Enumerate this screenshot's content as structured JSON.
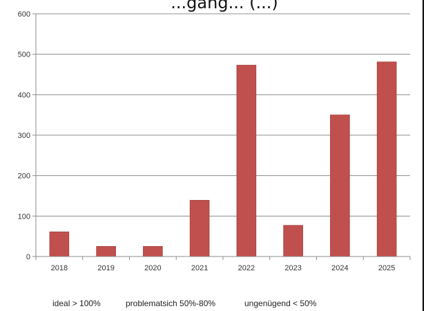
{
  "chart_data": {
    "type": "bar",
    "title": "...gang... (...)",
    "categories": [
      "2018",
      "2019",
      "2020",
      "2021",
      "2022",
      "2023",
      "2024",
      "2025"
    ],
    "values": [
      61,
      25,
      25,
      139,
      473,
      77,
      350,
      481
    ],
    "ylim": [
      0,
      600
    ],
    "yticks": [
      0,
      100,
      200,
      300,
      400,
      500,
      600
    ],
    "grid": true,
    "bar_color": "#c0504d",
    "legend_notes": [
      "ideal > 100%",
      "problematsich 50%-80%",
      "ungenügend < 50%"
    ]
  }
}
